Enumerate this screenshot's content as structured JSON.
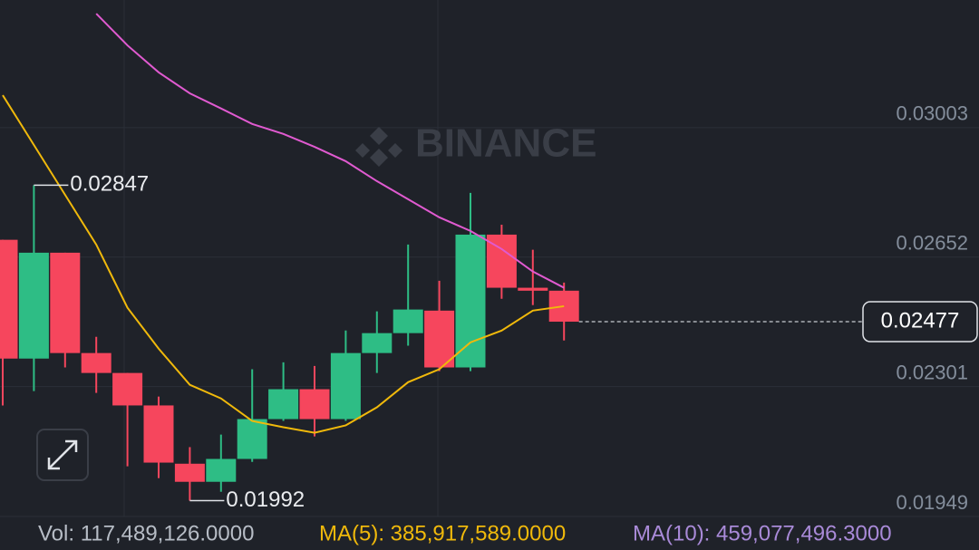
{
  "chart_data": {
    "type": "candlestick",
    "watermark": "BINANCE",
    "candles": [
      {
        "open": 0.02699,
        "high": 0.02699,
        "low": 0.0225,
        "close": 0.02377
      },
      {
        "open": 0.02377,
        "high": 0.02847,
        "low": 0.02289,
        "close": 0.02664
      },
      {
        "open": 0.02664,
        "high": 0.02664,
        "low": 0.02353,
        "close": 0.02392
      },
      {
        "open": 0.02392,
        "high": 0.02436,
        "low": 0.02284,
        "close": 0.02338
      },
      {
        "open": 0.02338,
        "high": 0.02338,
        "low": 0.02085,
        "close": 0.0225
      },
      {
        "open": 0.0225,
        "high": 0.02274,
        "low": 0.02053,
        "close": 0.02095
      },
      {
        "open": 0.02092,
        "high": 0.02137,
        "low": 0.01992,
        "close": 0.02043
      },
      {
        "open": 0.02043,
        "high": 0.02171,
        "low": 0.02016,
        "close": 0.02105
      },
      {
        "open": 0.02105,
        "high": 0.02348,
        "low": 0.02097,
        "close": 0.02213
      },
      {
        "open": 0.02213,
        "high": 0.02367,
        "low": 0.02208,
        "close": 0.02294
      },
      {
        "open": 0.02294,
        "high": 0.02357,
        "low": 0.02166,
        "close": 0.02213
      },
      {
        "open": 0.02213,
        "high": 0.02453,
        "low": 0.02208,
        "close": 0.02392
      },
      {
        "open": 0.02392,
        "high": 0.02505,
        "low": 0.02338,
        "close": 0.02446
      },
      {
        "open": 0.02446,
        "high": 0.02686,
        "low": 0.02412,
        "close": 0.0251
      },
      {
        "open": 0.02507,
        "high": 0.02588,
        "low": 0.02343,
        "close": 0.02353
      },
      {
        "open": 0.02353,
        "high": 0.02826,
        "low": 0.02343,
        "close": 0.02713
      },
      {
        "open": 0.02713,
        "high": 0.0274,
        "low": 0.02539,
        "close": 0.02569
      },
      {
        "open": 0.02569,
        "high": 0.02672,
        "low": 0.02522,
        "close": 0.02561
      },
      {
        "open": 0.02561,
        "high": 0.02583,
        "low": 0.02426,
        "close": 0.02477
      }
    ],
    "up_color": "#2ebd85",
    "down_color": "#f6465d",
    "lines": [
      {
        "color": "#f0b90b",
        "values": [
          0.03091,
          0.02956,
          0.02821,
          0.02686,
          0.02515,
          0.02404,
          0.02306,
          0.02269,
          0.02208,
          0.02191,
          0.02176,
          0.02196,
          0.02245,
          0.02313,
          0.02348,
          0.02421,
          0.02453,
          0.02507,
          0.02519
        ]
      },
      {
        "color": "#e05ad0",
        "values": [
          null,
          null,
          null,
          0.03312,
          0.03226,
          0.03153,
          0.03096,
          0.03055,
          0.03013,
          0.02986,
          0.02951,
          0.02912,
          0.02858,
          0.02809,
          0.0276,
          0.02723,
          0.02674,
          0.02613,
          0.02569
        ]
      }
    ],
    "ylim": [
      0.01949,
      0.03349
    ],
    "yticks": [
      0.03003,
      0.02652,
      0.02301,
      0.01949
    ],
    "grid": true,
    "footer": {
      "vol": "Vol: 117,489,126.0000",
      "ma5": "MA(5): 385,917,589.0000",
      "ma10": "MA(10): 459,077,496.3000"
    }
  }
}
